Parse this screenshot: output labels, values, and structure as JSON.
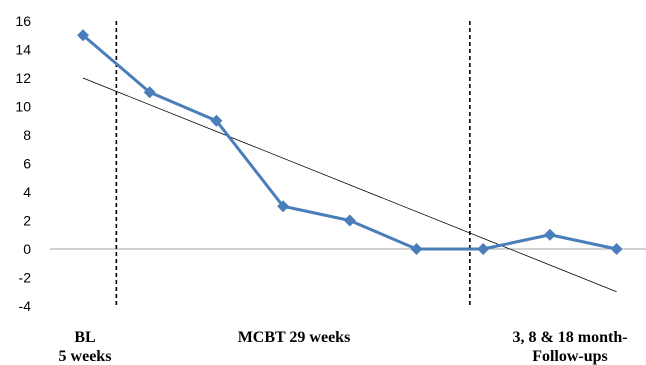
{
  "chart_data": {
    "type": "line",
    "title": "",
    "xlabel": "",
    "ylabel": "",
    "x": [
      1,
      2,
      3,
      4,
      5,
      6,
      7,
      8,
      9
    ],
    "series": [
      {
        "values": [
          15,
          11,
          9,
          3,
          2,
          0,
          0,
          1,
          0
        ],
        "color": "#4a7ebb",
        "marker": "diamond"
      }
    ],
    "trendline": {
      "type": "linear",
      "start": [
        1,
        12
      ],
      "end": [
        9,
        -3
      ],
      "color": "#000000"
    },
    "ylim": [
      -4,
      16
    ],
    "yticks": [
      -4,
      -2,
      0,
      2,
      4,
      6,
      8,
      10,
      12,
      14,
      16
    ],
    "phase_boundaries": [
      1.5,
      6.8
    ],
    "phase_labels": {
      "baseline": {
        "line1": "BL",
        "line2": "5 weeks"
      },
      "treatment": {
        "line1": "MCBT 29 weeks"
      },
      "followup": {
        "line1": "3, 8 & 18 month-",
        "line2": "Follow-ups"
      }
    },
    "grid": false,
    "legend": "none"
  }
}
